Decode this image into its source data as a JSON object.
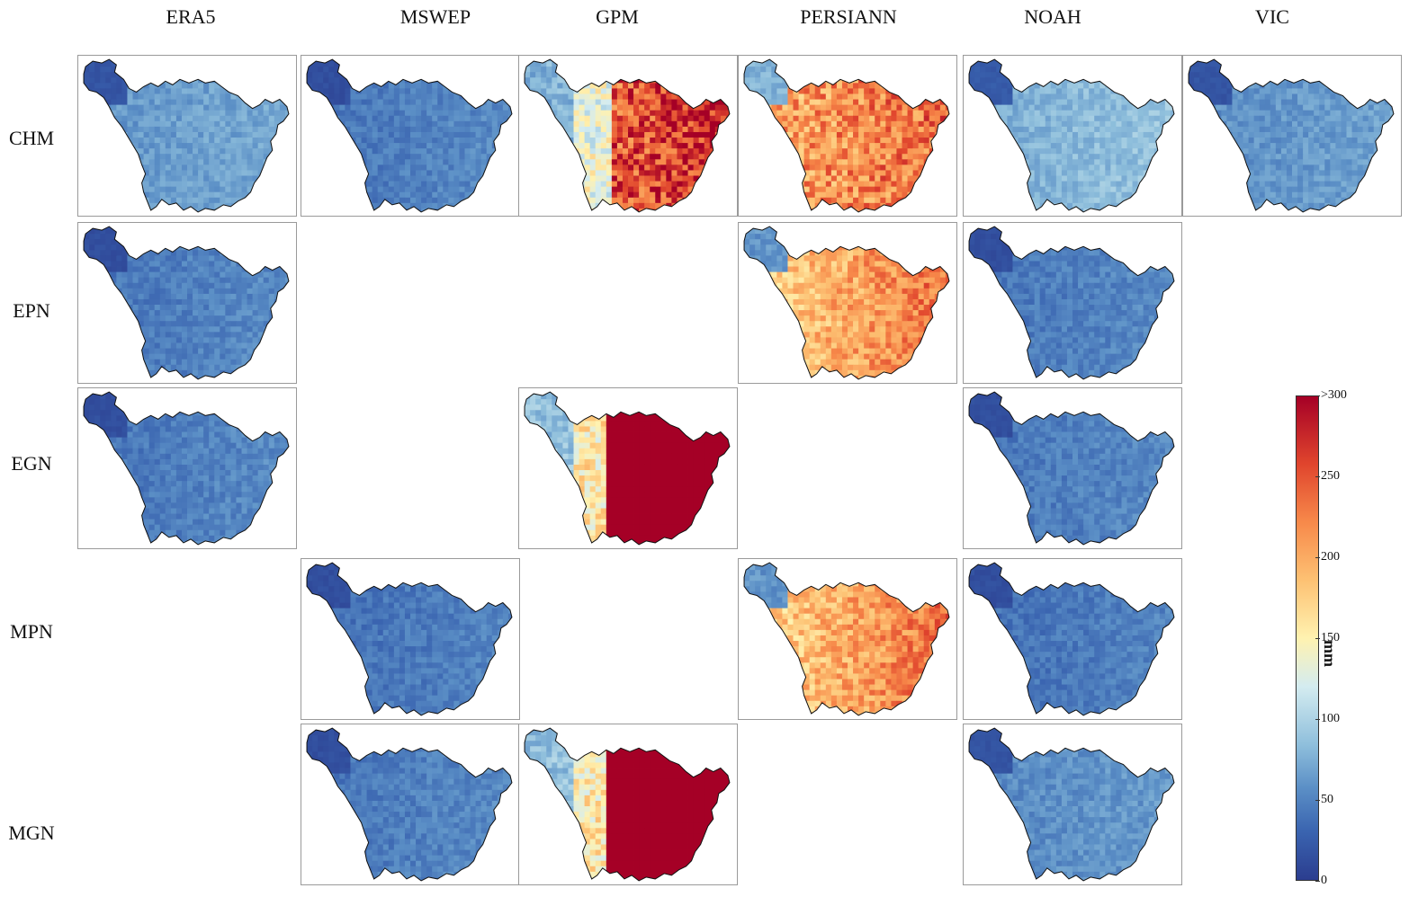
{
  "columns": [
    "ERA5",
    "MSWEP",
    "GPM",
    "PERSIANN",
    "NOAH",
    "VIC"
  ],
  "rows": [
    "CHM",
    "EPN",
    "EGN",
    "MPN",
    "MGN"
  ],
  "colorbar": {
    "unit": "mm",
    "tick_labels": [
      "0",
      "50",
      "100",
      "150",
      "200",
      "250",
      ">300"
    ],
    "tick_values": [
      0,
      50,
      100,
      150,
      200,
      250,
      300
    ],
    "range": [
      0,
      300
    ],
    "colors": [
      "#2b3d8f",
      "#3a64b0",
      "#5b8fc6",
      "#8fbfdc",
      "#d4ecf0",
      "#fff2b0",
      "#fdc173",
      "#f7894a",
      "#e0452d",
      "#a50026"
    ]
  },
  "panels": [
    {
      "row": "CHM",
      "col": "ERA5",
      "scheme": "blue-mid",
      "approx_mm": 70
    },
    {
      "row": "CHM",
      "col": "MSWEP",
      "scheme": "blue-dark",
      "approx_mm": 55
    },
    {
      "row": "CHM",
      "col": "GPM",
      "scheme": "gradient-red-east",
      "approx_mm": 220
    },
    {
      "row": "CHM",
      "col": "PERSIANN",
      "scheme": "orange-mixed",
      "approx_mm": 210
    },
    {
      "row": "CHM",
      "col": "NOAH",
      "scheme": "blue-light",
      "approx_mm": 85
    },
    {
      "row": "CHM",
      "col": "VIC",
      "scheme": "blue-mid",
      "approx_mm": 65
    },
    {
      "row": "EPN",
      "col": "ERA5",
      "scheme": "blue-dark",
      "approx_mm": 55
    },
    {
      "row": "EPN",
      "col": "PERSIANN",
      "scheme": "orange-light",
      "approx_mm": 200
    },
    {
      "row": "EPN",
      "col": "NOAH",
      "scheme": "blue-dark",
      "approx_mm": 55
    },
    {
      "row": "EGN",
      "col": "ERA5",
      "scheme": "blue-dark",
      "approx_mm": 55
    },
    {
      "row": "EGN",
      "col": "GPM",
      "scheme": "gradient-red-east-strong",
      "approx_mm": 260
    },
    {
      "row": "EGN",
      "col": "NOAH",
      "scheme": "blue-dark",
      "approx_mm": 55
    },
    {
      "row": "MPN",
      "col": "MSWEP",
      "scheme": "blue-dark",
      "approx_mm": 50
    },
    {
      "row": "MPN",
      "col": "PERSIANN",
      "scheme": "orange-light",
      "approx_mm": 200
    },
    {
      "row": "MPN",
      "col": "NOAH",
      "scheme": "blue-dark",
      "approx_mm": 50
    },
    {
      "row": "MGN",
      "col": "MSWEP",
      "scheme": "blue-dark",
      "approx_mm": 55
    },
    {
      "row": "MGN",
      "col": "GPM",
      "scheme": "gradient-red-east-strong",
      "approx_mm": 260
    },
    {
      "row": "MGN",
      "col": "NOAH",
      "scheme": "blue-mid",
      "approx_mm": 60
    }
  ]
}
